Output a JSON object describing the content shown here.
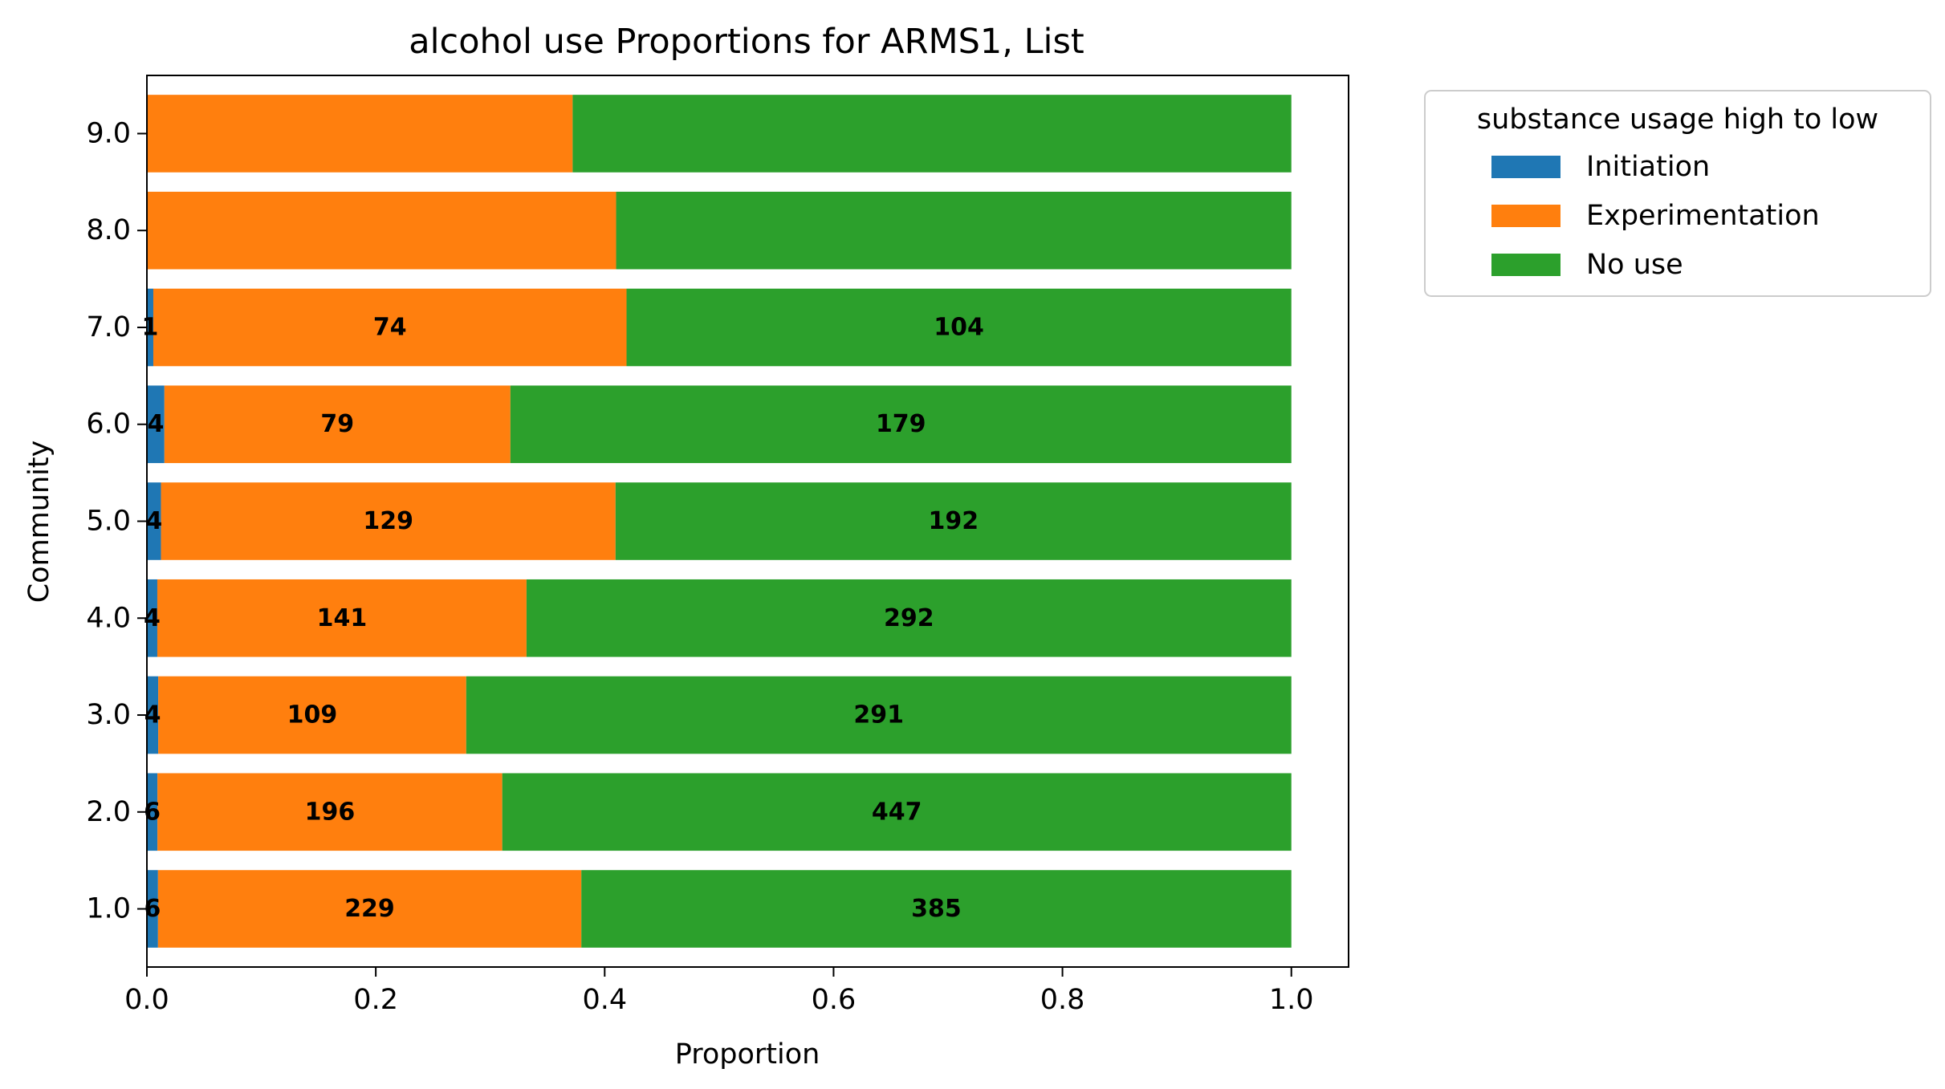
{
  "chart_data": {
    "type": "bar",
    "orientation": "horizontal",
    "stacked": true,
    "title": "alcohol use Proportions for ARMS1, List",
    "xlabel": "Proportion",
    "ylabel": "Community",
    "xlim": [
      0,
      1.05
    ],
    "x_ticks": [
      "0.0",
      "0.2",
      "0.4",
      "0.6",
      "0.8",
      "1.0"
    ],
    "x_tick_values": [
      0,
      0.2,
      0.4,
      0.6,
      0.8,
      1.0
    ],
    "categories": [
      "1.0",
      "2.0",
      "3.0",
      "4.0",
      "5.0",
      "6.0",
      "7.0",
      "8.0",
      "9.0"
    ],
    "legend": {
      "title": "substance usage high to low",
      "placement": "outside-upper-right"
    },
    "grid": false,
    "series": [
      {
        "name": "Initiation",
        "color": "#1f77b4",
        "values": [
          0.0097,
          0.0092,
          0.0099,
          0.0091,
          0.0123,
          0.0153,
          0.0056,
          0.0,
          0.0
        ],
        "labels": [
          "6",
          "6",
          "4",
          "4",
          "4",
          "4",
          "1",
          "",
          ""
        ]
      },
      {
        "name": "Experimentation",
        "color": "#ff7f0e",
        "values": [
          0.3699,
          0.3013,
          0.2691,
          0.3226,
          0.3972,
          0.3023,
          0.4135,
          0.41,
          0.372
        ],
        "labels": [
          "229",
          "196",
          "109",
          "141",
          "129",
          "79",
          "74",
          "",
          ""
        ]
      },
      {
        "name": "No use",
        "color": "#2ca02c",
        "values": [
          0.6204,
          0.6895,
          0.721,
          0.6683,
          0.5905,
          0.6824,
          0.5809,
          0.59,
          0.628
        ],
        "labels": [
          "385",
          "447",
          "291",
          "292",
          "192",
          "179",
          "104",
          "",
          ""
        ]
      }
    ]
  }
}
